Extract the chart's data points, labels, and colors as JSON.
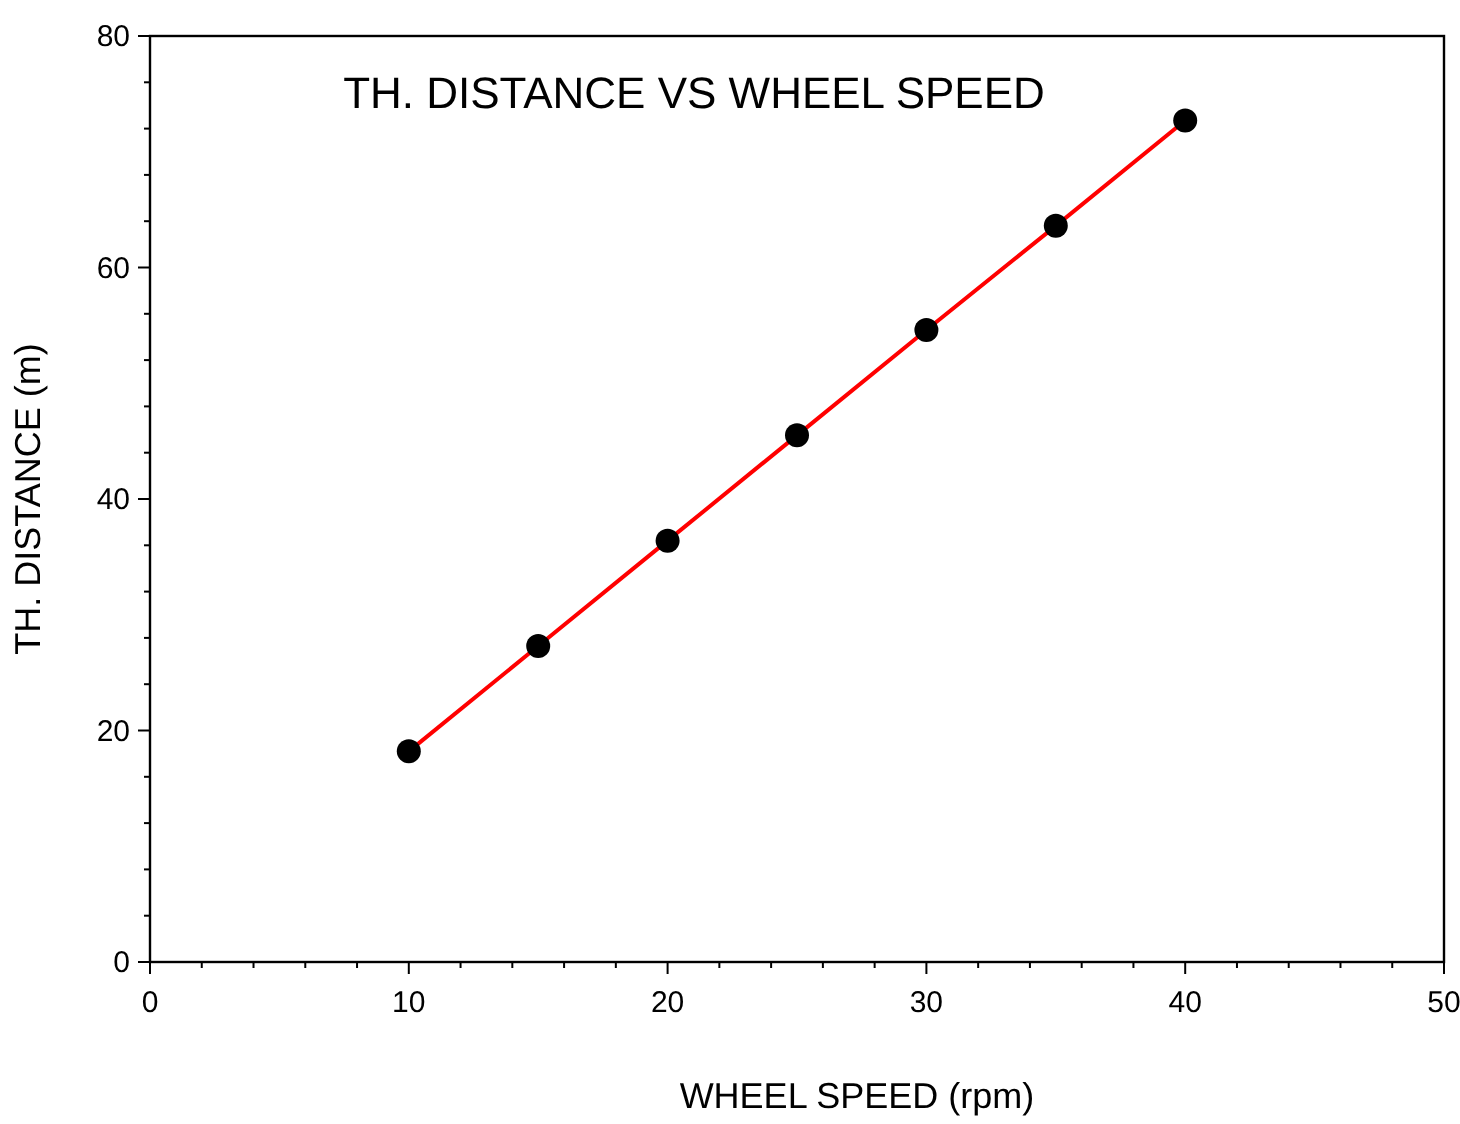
{
  "chart_data": {
    "type": "line",
    "title": "TH. DISTANCE VS WHEEL SPEED",
    "xlabel": "WHEEL SPEED (rpm)",
    "ylabel": "TH. DISTANCE (m)",
    "x": [
      10,
      15,
      20,
      25,
      30,
      35,
      40
    ],
    "series": [
      {
        "color": "#ff0000",
        "values": [
          18.2,
          27.3,
          36.4,
          45.5,
          54.6,
          63.6,
          72.7
        ]
      }
    ],
    "marker": "circle",
    "line_style": "solid",
    "grid": false,
    "xlim": [
      0,
      50
    ],
    "ylim": [
      0,
      80
    ],
    "xticks": [
      0,
      {
        "value": 2,
        "label": null
      },
      {
        "value": 4,
        "label": null
      },
      {
        "value": 6,
        "label": null
      },
      {
        "value": 8,
        "label": null
      },
      10,
      {
        "value": 12,
        "label": null
      },
      {
        "value": 14,
        "label": null
      },
      {
        "value": 16,
        "label": null
      },
      {
        "value": 18,
        "label": null
      },
      20,
      {
        "value": 22,
        "label": null
      },
      {
        "value": 24,
        "label": null
      },
      {
        "value": 26,
        "label": null
      },
      {
        "value": 28,
        "label": null
      },
      30,
      {
        "value": 32,
        "label": null
      },
      {
        "value": 34,
        "label": null
      },
      {
        "value": 36,
        "label": null
      },
      {
        "value": 38,
        "label": null
      },
      40,
      {
        "value": 42,
        "label": null
      },
      {
        "value": 44,
        "label": null
      },
      {
        "value": 46,
        "label": null
      },
      {
        "value": 48,
        "label": null
      },
      50
    ],
    "yticks": [
      0,
      {
        "value": 4,
        "label": null
      },
      {
        "value": 8,
        "label": null
      },
      {
        "value": 12,
        "label": null
      },
      {
        "value": 16,
        "label": null
      },
      20,
      {
        "value": 24,
        "label": null
      },
      {
        "value": 28,
        "label": null
      },
      {
        "value": 32,
        "label": null
      },
      {
        "value": 36,
        "label": null
      },
      40,
      {
        "value": 44,
        "label": null
      },
      {
        "value": 48,
        "label": null
      },
      {
        "value": 52,
        "label": null
      },
      {
        "value": 56,
        "label": null
      },
      60,
      {
        "value": 64,
        "label": null
      },
      {
        "value": 68,
        "label": null
      },
      {
        "value": 72,
        "label": null
      },
      {
        "value": 76,
        "label": null
      },
      80
    ]
  }
}
